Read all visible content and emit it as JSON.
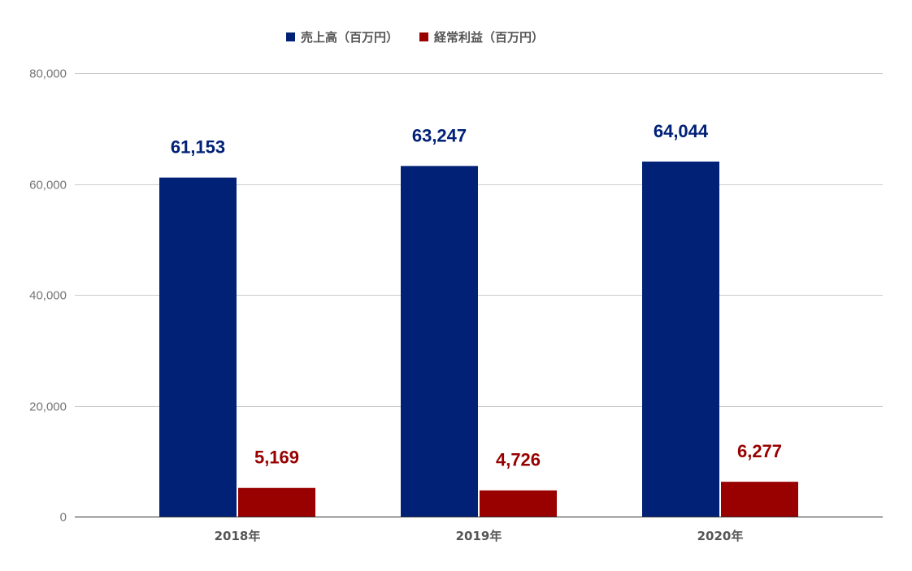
{
  "chart_data": {
    "type": "bar",
    "categories": [
      "2018年",
      "2019年",
      "2020年"
    ],
    "series": [
      {
        "name": "売上高（百万円）",
        "color": "#012177",
        "values": [
          61153,
          63247,
          64044
        ]
      },
      {
        "name": "経常利益（百万円）",
        "color": "#990000",
        "values": [
          5169,
          4726,
          6277
        ]
      }
    ],
    "data_labels": [
      [
        "61,153",
        "63,247",
        "64,044"
      ],
      [
        "5,169",
        "4,726",
        "6,277"
      ]
    ],
    "y_ticks": [
      0,
      20000,
      40000,
      60000,
      80000
    ],
    "y_tick_labels": [
      "0",
      "20,000",
      "40,000",
      "60,000",
      "80,000"
    ],
    "ylim": [
      0,
      80000
    ],
    "grid": true,
    "legend_position": "top-center",
    "title": "",
    "xlabel": "",
    "ylabel": ""
  },
  "colors": {
    "gridline": "#cccccc",
    "baseline": "#333333"
  }
}
